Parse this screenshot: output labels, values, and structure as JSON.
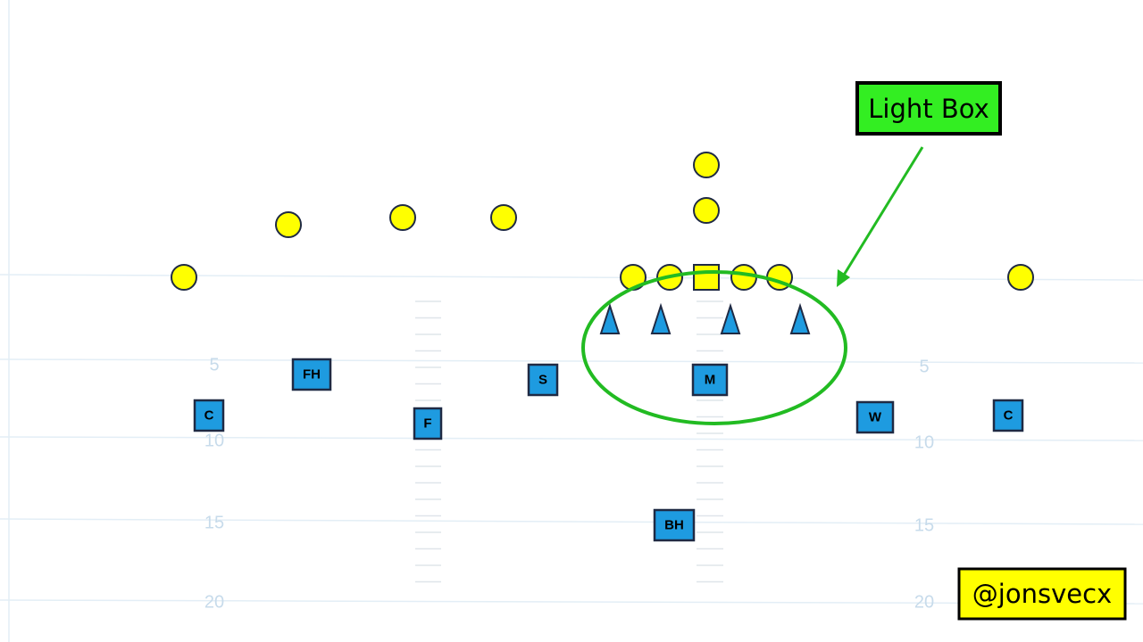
{
  "callout": {
    "label": "Light Box"
  },
  "watermark": "@jonsvecx",
  "yard_numbers": {
    "left": [
      "5",
      "10",
      "15",
      "20"
    ],
    "right": [
      "5",
      "10",
      "15",
      "20"
    ]
  },
  "defenders": [
    {
      "label": "FH"
    },
    {
      "label": "S"
    },
    {
      "label": "M"
    },
    {
      "label": "C"
    },
    {
      "label": "F"
    },
    {
      "label": "W"
    },
    {
      "label": "C"
    },
    {
      "label": "BH"
    }
  ]
}
